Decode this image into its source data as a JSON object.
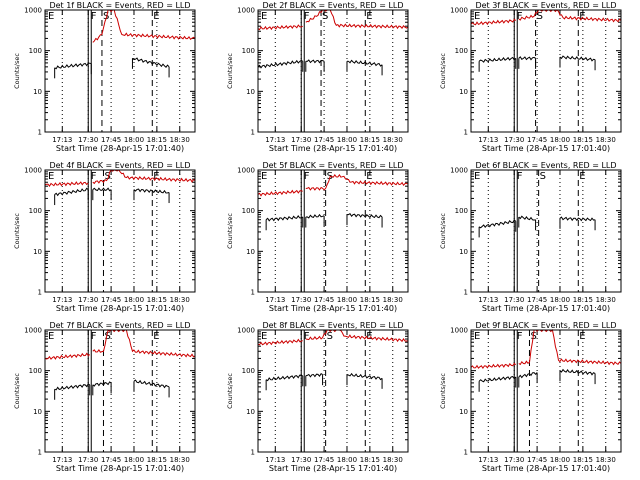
{
  "colors": {
    "events": "#000000",
    "lld": "#cc0000",
    "background": "#ffffff",
    "axes": "#000000"
  },
  "chart_data": [
    {
      "type": "line",
      "log_y": true,
      "ylim": [
        1,
        1000
      ],
      "xlim": [
        "17:01:40",
        "18:40"
      ],
      "title": "Det 1f BLACK = Events, RED = LLD",
      "xlabel": "Start Time (28-Apr-15 17:01:40)",
      "ylabel": "Counts/sec",
      "x_tick_labels": [
        "17:13",
        "17:30",
        "17:45",
        "18:00",
        "18:15",
        "18:30"
      ],
      "y_tick_labels": [
        "1",
        "10",
        "100",
        "1000"
      ],
      "markers": [
        {
          "label": "E",
          "time": "17:03"
        },
        {
          "label": "F",
          "time": "17:31"
        },
        {
          "label": "S",
          "time": "17:39"
        },
        {
          "label": "E",
          "time": "18:12"
        }
      ],
      "series": [
        {
          "color": "black",
          "segments": [
            {
              "x": [
                "17:08",
                "17:32"
              ],
              "y": [
                38,
                48
              ]
            },
            {
              "x": [
                "17:59",
                "18:23"
              ],
              "y": [
                65,
                40
              ]
            }
          ]
        },
        {
          "color": "red",
          "segments": [
            {
              "x": [
                "17:33",
                "17:39",
                "17:43",
                "17:47",
                "17:52",
                "18:40"
              ],
              "y": [
                160,
                250,
                1000,
                1000,
                250,
                200
              ]
            }
          ]
        }
      ]
    },
    {
      "type": "line",
      "log_y": true,
      "ylim": [
        1,
        1000
      ],
      "xlim": [
        "17:01:40",
        "18:40"
      ],
      "title": "Det 2f BLACK = Events, RED = LLD",
      "xlabel": "Start Time (28-Apr-15 17:01:40)",
      "ylabel": "Counts/sec",
      "x_tick_labels": [
        "17:13",
        "17:30",
        "17:45",
        "18:00",
        "18:15",
        "18:30"
      ],
      "y_tick_labels": [
        "1",
        "10",
        "100",
        "1000"
      ],
      "markers": [
        {
          "label": "E",
          "time": "17:03"
        },
        {
          "label": "F",
          "time": "17:31"
        },
        {
          "label": "S",
          "time": "17:43"
        },
        {
          "label": "E",
          "time": "18:12"
        }
      ],
      "series": [
        {
          "color": "black",
          "segments": [
            {
              "x": [
                "17:01:40",
                "17:31"
              ],
              "y": [
                40,
                55
              ]
            },
            {
              "x": [
                "17:33",
                "17:45"
              ],
              "y": [
                55,
                55
              ]
            },
            {
              "x": [
                "18:00",
                "18:23"
              ],
              "y": [
                55,
                45
              ]
            }
          ]
        },
        {
          "color": "red",
          "segments": [
            {
              "x": [
                "17:01:40",
                "17:31"
              ],
              "y": [
                350,
                400
              ]
            },
            {
              "x": [
                "17:33",
                "17:40",
                "17:44",
                "17:49",
                "17:53",
                "18:40"
              ],
              "y": [
                500,
                700,
                1000,
                1000,
                420,
                380
              ]
            }
          ]
        }
      ]
    },
    {
      "type": "line",
      "log_y": true,
      "ylim": [
        1,
        1000
      ],
      "xlim": [
        "17:01:40",
        "18:40"
      ],
      "title": "Det 3f BLACK = Events, RED = LLD",
      "xlabel": "Start Time (28-Apr-15 17:01:40)",
      "ylabel": "Counts/sec",
      "x_tick_labels": [
        "17:13",
        "17:30",
        "17:45",
        "18:00",
        "18:15",
        "18:30"
      ],
      "y_tick_labels": [
        "1",
        "10",
        "100",
        "1000"
      ],
      "markers": [
        {
          "label": "E",
          "time": "17:03"
        },
        {
          "label": "F",
          "time": "17:31"
        },
        {
          "label": "S",
          "time": "17:44"
        },
        {
          "label": "E",
          "time": "18:12"
        }
      ],
      "series": [
        {
          "color": "black",
          "segments": [
            {
              "x": [
                "17:07",
                "17:31"
              ],
              "y": [
                55,
                65
              ]
            },
            {
              "x": [
                "17:33",
                "17:44"
              ],
              "y": [
                65,
                65
              ]
            },
            {
              "x": [
                "18:00",
                "18:23"
              ],
              "y": [
                70,
                60
              ]
            }
          ]
        },
        {
          "color": "red",
          "segments": [
            {
              "x": [
                "17:01:40",
                "17:31"
              ],
              "y": [
                450,
                550
              ]
            },
            {
              "x": [
                "17:33",
                "17:43",
                "17:46",
                "17:58",
                "18:02",
                "18:40"
              ],
              "y": [
                600,
                700,
                1000,
                1000,
                650,
                550
              ]
            }
          ]
        }
      ]
    },
    {
      "type": "line",
      "log_y": true,
      "ylim": [
        1,
        1000
      ],
      "xlim": [
        "17:01:40",
        "18:40"
      ],
      "title": "Det 4f BLACK = Events, RED = LLD",
      "xlabel": "Start Time (28-Apr-15 17:01:40)",
      "ylabel": "Counts/sec",
      "x_tick_labels": [
        "17:13",
        "17:30",
        "17:45",
        "18:00",
        "18:15",
        "18:30"
      ],
      "y_tick_labels": [
        "1",
        "10",
        "100",
        "1000"
      ],
      "markers": [
        {
          "label": "E",
          "time": "17:03"
        },
        {
          "label": "F",
          "time": "17:31"
        },
        {
          "label": "S",
          "time": "17:40"
        },
        {
          "label": "E",
          "time": "18:12"
        }
      ],
      "series": [
        {
          "color": "black",
          "segments": [
            {
              "x": [
                "17:08",
                "17:30"
              ],
              "y": [
                250,
                330
              ]
            },
            {
              "x": [
                "17:33",
                "17:45"
              ],
              "y": [
                330,
                330
              ]
            },
            {
              "x": [
                "18:00",
                "18:23"
              ],
              "y": [
                330,
                280
              ]
            }
          ]
        },
        {
          "color": "red",
          "segments": [
            {
              "x": [
                "17:01:40",
                "17:30"
              ],
              "y": [
                430,
                480
              ]
            },
            {
              "x": [
                "17:33",
                "17:42",
                "17:45",
                "17:50",
                "17:55",
                "18:40"
              ],
              "y": [
                500,
                550,
                1000,
                1000,
                650,
                550
              ]
            }
          ]
        }
      ]
    },
    {
      "type": "line",
      "log_y": true,
      "ylim": [
        1,
        1000
      ],
      "xlim": [
        "17:01:40",
        "18:40"
      ],
      "title": "Det 5f BLACK = Events, RED = LLD",
      "xlabel": "Start Time (28-Apr-15 17:01:40)",
      "ylabel": "Counts/sec",
      "x_tick_labels": [
        "17:13",
        "17:30",
        "17:45",
        "18:00",
        "18:15",
        "18:30"
      ],
      "y_tick_labels": [
        "1",
        "10",
        "100",
        "1000"
      ],
      "markers": [
        {
          "label": "E",
          "time": "17:03"
        },
        {
          "label": "F",
          "time": "17:31"
        },
        {
          "label": "S",
          "time": "17:46"
        },
        {
          "label": "E",
          "time": "18:12"
        }
      ],
      "series": [
        {
          "color": "black",
          "segments": [
            {
              "x": [
                "17:07",
                "17:31"
              ],
              "y": [
                60,
                70
              ]
            },
            {
              "x": [
                "17:33",
                "17:45"
              ],
              "y": [
                70,
                75
              ]
            },
            {
              "x": [
                "18:00",
                "18:23"
              ],
              "y": [
                80,
                70
              ]
            }
          ]
        },
        {
          "color": "red",
          "segments": [
            {
              "x": [
                "17:01:40",
                "17:31"
              ],
              "y": [
                250,
                300
              ]
            },
            {
              "x": [
                "17:33",
                "17:46",
                "17:49",
                "17:58",
                "18:02",
                "18:40"
              ],
              "y": [
                350,
                350,
                700,
                700,
                500,
                450
              ]
            }
          ]
        }
      ]
    },
    {
      "type": "line",
      "log_y": true,
      "ylim": [
        1,
        1000
      ],
      "xlim": [
        "17:01:40",
        "18:40"
      ],
      "title": "Det 6f BLACK = Events, RED = LLD",
      "xlabel": "Start Time (28-Apr-15 17:01:40)",
      "ylabel": "Counts/sec",
      "x_tick_labels": [
        "17:13",
        "17:30",
        "17:45",
        "18:00",
        "18:15",
        "18:30"
      ],
      "y_tick_labels": [
        "1",
        "10",
        "100",
        "1000"
      ],
      "markers": [
        {
          "label": "E",
          "time": "17:03"
        },
        {
          "label": "F",
          "time": "17:31"
        },
        {
          "label": "S",
          "time": "17:46"
        },
        {
          "label": "E",
          "time": "18:12"
        }
      ],
      "series": [
        {
          "color": "black",
          "segments": [
            {
              "x": [
                "17:07",
                "17:31"
              ],
              "y": [
                40,
                55
              ]
            },
            {
              "x": [
                "17:33",
                "17:44"
              ],
              "y": [
                70,
                60
              ]
            },
            {
              "x": [
                "18:00",
                "18:23"
              ],
              "y": [
                65,
                60
              ]
            }
          ]
        }
      ]
    },
    {
      "type": "line",
      "log_y": true,
      "ylim": [
        1,
        1000
      ],
      "xlim": [
        "17:01:40",
        "18:40"
      ],
      "title": "Det 7f BLACK = Events, RED = LLD",
      "xlabel": "Start Time (28-Apr-15 17:01:40)",
      "ylabel": "Counts/sec",
      "x_tick_labels": [
        "17:13",
        "17:30",
        "17:45",
        "18:00",
        "18:15",
        "18:30"
      ],
      "y_tick_labels": [
        "1",
        "10",
        "100",
        "1000"
      ],
      "markers": [
        {
          "label": "E",
          "time": "17:03"
        },
        {
          "label": "F",
          "time": "17:31"
        },
        {
          "label": "S",
          "time": "17:40"
        },
        {
          "label": "E",
          "time": "18:12"
        }
      ],
      "series": [
        {
          "color": "black",
          "segments": [
            {
              "x": [
                "17:08",
                "17:31"
              ],
              "y": [
                35,
                45
              ]
            },
            {
              "x": [
                "17:33",
                "17:45"
              ],
              "y": [
                45,
                50
              ]
            },
            {
              "x": [
                "18:00",
                "18:23"
              ],
              "y": [
                55,
                40
              ]
            }
          ]
        },
        {
          "color": "red",
          "segments": [
            {
              "x": [
                "17:01:40",
                "17:31"
              ],
              "y": [
                200,
                250
              ]
            },
            {
              "x": [
                "17:33",
                "17:40",
                "17:43",
                "17:55",
                "17:59",
                "18:40"
              ],
              "y": [
                300,
                300,
                1000,
                1000,
                300,
                230
              ]
            }
          ]
        }
      ]
    },
    {
      "type": "line",
      "log_y": true,
      "ylim": [
        1,
        1000
      ],
      "xlim": [
        "17:01:40",
        "18:40"
      ],
      "title": "Det 8f BLACK = Events, RED = LLD",
      "xlabel": "Start Time (28-Apr-15 17:01:40)",
      "ylabel": "Counts/sec",
      "x_tick_labels": [
        "17:13",
        "17:30",
        "17:45",
        "18:00",
        "18:15",
        "18:30"
      ],
      "y_tick_labels": [
        "1",
        "10",
        "100",
        "1000"
      ],
      "markers": [
        {
          "label": "E",
          "time": "17:03"
        },
        {
          "label": "F",
          "time": "17:31"
        },
        {
          "label": "S",
          "time": "17:46"
        },
        {
          "label": "E",
          "time": "18:12"
        }
      ],
      "series": [
        {
          "color": "black",
          "segments": [
            {
              "x": [
                "17:07",
                "17:31"
              ],
              "y": [
                60,
                75
              ]
            },
            {
              "x": [
                "17:33",
                "17:44"
              ],
              "y": [
                75,
                80
              ]
            },
            {
              "x": [
                "18:00",
                "18:23"
              ],
              "y": [
                80,
                65
              ]
            }
          ]
        },
        {
          "color": "red",
          "segments": [
            {
              "x": [
                "17:01:40",
                "17:31"
              ],
              "y": [
                450,
                550
              ]
            },
            {
              "x": [
                "17:33",
                "17:44",
                "17:47",
                "17:55",
                "17:59",
                "18:40"
              ],
              "y": [
                600,
                650,
                1000,
                1000,
                700,
                550
              ]
            }
          ]
        }
      ]
    },
    {
      "type": "line",
      "log_y": true,
      "ylim": [
        1,
        1000
      ],
      "xlim": [
        "17:01:40",
        "18:40"
      ],
      "title": "Det 9f BLACK = Events, RED = LLD",
      "xlabel": "Start Time (28-Apr-15 17:01:40)",
      "ylabel": "Counts/sec",
      "x_tick_labels": [
        "17:13",
        "17:30",
        "17:45",
        "18:00",
        "18:15",
        "18:30"
      ],
      "y_tick_labels": [
        "1",
        "10",
        "100",
        "1000"
      ],
      "markers": [
        {
          "label": "E",
          "time": "17:03"
        },
        {
          "label": "F",
          "time": "17:31"
        },
        {
          "label": "S",
          "time": "17:40"
        },
        {
          "label": "E",
          "time": "18:12"
        }
      ],
      "series": [
        {
          "color": "black",
          "segments": [
            {
              "x": [
                "17:07",
                "17:31"
              ],
              "y": [
                55,
                70
              ]
            },
            {
              "x": [
                "17:33",
                "17:45"
              ],
              "y": [
                70,
                90
              ]
            },
            {
              "x": [
                "18:00",
                "18:23"
              ],
              "y": [
                100,
                85
              ]
            }
          ]
        },
        {
          "color": "red",
          "segments": [
            {
              "x": [
                "17:01:40",
                "17:31"
              ],
              "y": [
                120,
                140
              ]
            },
            {
              "x": [
                "17:33",
                "17:40",
                "17:43",
                "17:55",
                "17:59",
                "18:40"
              ],
              "y": [
                150,
                160,
                1000,
                1000,
                180,
                150
              ]
            }
          ]
        }
      ]
    }
  ]
}
